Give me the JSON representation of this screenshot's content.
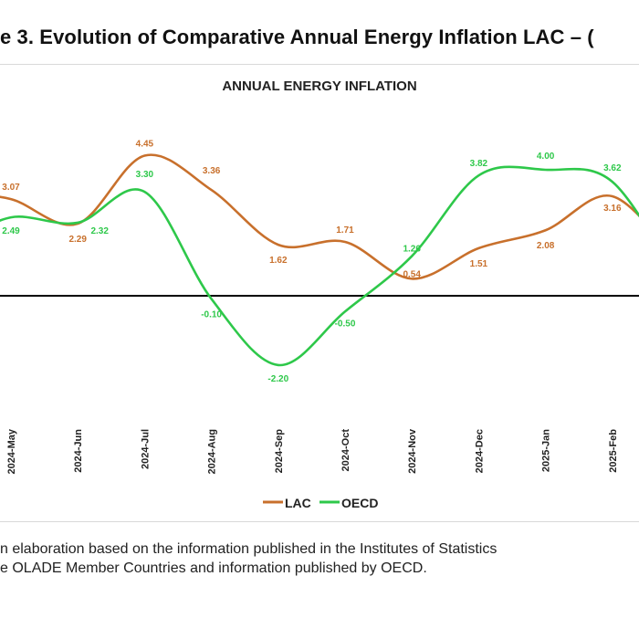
{
  "figure_title": "e 3. Evolution of Comparative Annual Energy Inflation LAC – (",
  "chart_data": {
    "type": "line",
    "title": "ANNUAL ENERGY INFLATION",
    "x": [
      "2024-May",
      "2024-Jun",
      "2024-Jul",
      "2024-Aug",
      "2024-Sep",
      "2024-Oct",
      "2024-Nov",
      "2024-Dec",
      "2025-Jan",
      "2025-Feb"
    ],
    "series": [
      {
        "name": "LAC",
        "color": "#c8702c",
        "values": [
          3.07,
          2.29,
          4.45,
          3.36,
          1.62,
          1.71,
          0.54,
          1.51,
          2.08,
          3.16
        ]
      },
      {
        "name": "OECD",
        "color": "#2ec84a",
        "values": [
          2.49,
          2.32,
          3.3,
          -0.1,
          -2.2,
          -0.5,
          1.26,
          3.82,
          4.0,
          3.62
        ]
      }
    ],
    "data_labels": {
      "LAC": [
        "3.07",
        "2.29",
        "4.45",
        "3.36",
        "1.62",
        "1.71",
        "0.54",
        "1.51",
        "2.08",
        "3.16"
      ],
      "OECD": [
        "2.49",
        "2.32",
        "3.30",
        "-0.10",
        "-2.20",
        "-0.50",
        "1.26",
        "3.82",
        "4.00",
        "3.62"
      ]
    },
    "zero_line": true,
    "grid": false,
    "legend_placement": "bottom-center"
  },
  "source_note": {
    "line1": "n elaboration based on the information published in the Institutes of Statistics",
    "line2": "e OLADE Member Countries and information published by OECD."
  }
}
